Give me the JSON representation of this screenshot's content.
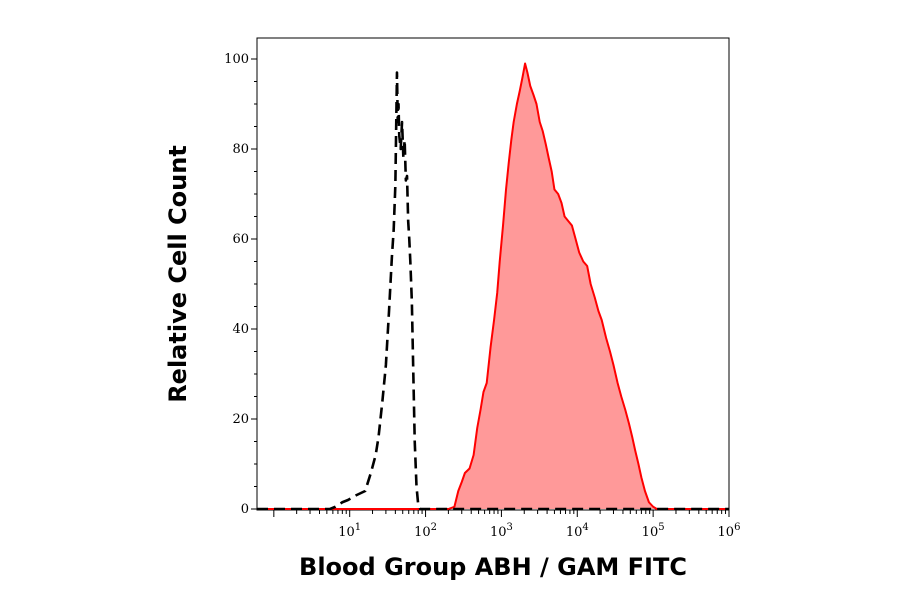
{
  "chart_data": {
    "type": "area",
    "xlabel": "Blood Group ABH / GAM FITC",
    "ylabel": "Relative Cell Count",
    "x_scale": "log",
    "xlim": [
      0.6,
      1000000
    ],
    "ylim": [
      0,
      100
    ],
    "grid": false,
    "y_ticks": [
      0,
      20,
      40,
      60,
      80,
      100
    ],
    "y_tick_labels": [
      "0",
      "20",
      "40",
      "60",
      "80",
      "100"
    ],
    "x_ticks": [
      10,
      100,
      1000,
      10000,
      100000,
      1000000
    ],
    "x_tick_labels": [
      {
        "base": "10",
        "exp": "1"
      },
      {
        "base": "10",
        "exp": "2"
      },
      {
        "base": "10",
        "exp": "3"
      },
      {
        "base": "10",
        "exp": "4"
      },
      {
        "base": "10",
        "exp": "5"
      },
      {
        "base": "10",
        "exp": "6"
      }
    ],
    "series": [
      {
        "style": "dashed-black-outline",
        "color": "#000000",
        "points": [
          [
            0.6,
            0
          ],
          [
            5.5,
            0
          ],
          [
            6.5,
            0.5
          ],
          [
            8,
            1.5
          ],
          [
            9.5,
            2
          ],
          [
            12,
            3
          ],
          [
            16,
            4
          ],
          [
            19,
            8
          ],
          [
            22,
            12
          ],
          [
            24,
            16
          ],
          [
            27,
            24
          ],
          [
            30,
            32
          ],
          [
            33,
            44
          ],
          [
            36,
            56
          ],
          [
            38,
            62
          ],
          [
            40,
            72
          ],
          [
            41,
            85
          ],
          [
            42,
            97
          ],
          [
            43,
            86
          ],
          [
            44,
            90
          ],
          [
            45,
            83
          ],
          [
            47,
            80
          ],
          [
            49,
            86
          ],
          [
            51,
            78
          ],
          [
            53,
            82
          ],
          [
            55,
            73
          ],
          [
            57,
            74
          ],
          [
            59,
            64
          ],
          [
            61,
            60
          ],
          [
            63,
            55
          ],
          [
            66,
            46
          ],
          [
            69,
            30
          ],
          [
            72,
            15
          ],
          [
            76,
            5
          ],
          [
            80,
            1
          ],
          [
            85,
            0
          ],
          [
            1000000,
            0
          ]
        ]
      },
      {
        "style": "filled-red",
        "color": "#ff0000",
        "fill": "#ff9999",
        "points": [
          [
            0.6,
            0
          ],
          [
            200,
            0
          ],
          [
            240,
            0.5
          ],
          [
            270,
            4
          ],
          [
            300,
            6
          ],
          [
            330,
            8
          ],
          [
            380,
            9
          ],
          [
            430,
            12
          ],
          [
            480,
            18
          ],
          [
            530,
            22
          ],
          [
            580,
            26
          ],
          [
            640,
            28
          ],
          [
            720,
            36
          ],
          [
            800,
            42
          ],
          [
            880,
            48
          ],
          [
            950,
            55
          ],
          [
            1050,
            63
          ],
          [
            1150,
            71
          ],
          [
            1250,
            77
          ],
          [
            1350,
            82
          ],
          [
            1450,
            86
          ],
          [
            1600,
            90
          ],
          [
            1750,
            93
          ],
          [
            1900,
            96
          ],
          [
            2050,
            99
          ],
          [
            2200,
            97
          ],
          [
            2400,
            94
          ],
          [
            2650,
            92
          ],
          [
            2900,
            90
          ],
          [
            3200,
            86
          ],
          [
            3500,
            84
          ],
          [
            3850,
            81
          ],
          [
            4200,
            78
          ],
          [
            4600,
            75
          ],
          [
            5000,
            71
          ],
          [
            5600,
            70
          ],
          [
            6200,
            68
          ],
          [
            6800,
            65
          ],
          [
            7600,
            64
          ],
          [
            8500,
            63
          ],
          [
            9500,
            60
          ],
          [
            10600,
            57
          ],
          [
            12000,
            55
          ],
          [
            13500,
            54
          ],
          [
            15000,
            50
          ],
          [
            17000,
            47
          ],
          [
            19000,
            44
          ],
          [
            21000,
            42
          ],
          [
            24000,
            38
          ],
          [
            27000,
            35
          ],
          [
            30000,
            32
          ],
          [
            34000,
            28
          ],
          [
            38000,
            25
          ],
          [
            43000,
            22
          ],
          [
            48000,
            19
          ],
          [
            53000,
            16
          ],
          [
            58000,
            13
          ],
          [
            64000,
            10
          ],
          [
            70000,
            7
          ],
          [
            78000,
            4
          ],
          [
            88000,
            1.5
          ],
          [
            100000,
            0.5
          ],
          [
            112000,
            0
          ],
          [
            1000000,
            0
          ]
        ]
      }
    ]
  }
}
